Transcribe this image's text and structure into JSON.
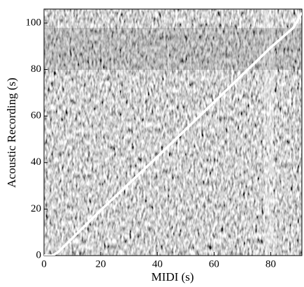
{
  "chart_data": {
    "type": "line",
    "xlabel": "MIDI (s)",
    "ylabel": "Acoustic Recording (s)",
    "x": [
      0,
      3,
      5,
      20,
      40,
      60,
      80,
      88,
      91
    ],
    "series": [
      {
        "color": "#ffffff",
        "values": [
          0,
          0,
          1.5,
          19.5,
          42.5,
          66,
          89.5,
          98,
          104.5
        ]
      }
    ],
    "xlim": [
      0,
      91
    ],
    "xticks": [
      0,
      20,
      40,
      60,
      80
    ],
    "ylim": [
      0,
      106
    ],
    "yticks": [
      0,
      20,
      40,
      60,
      80,
      100
    ]
  }
}
